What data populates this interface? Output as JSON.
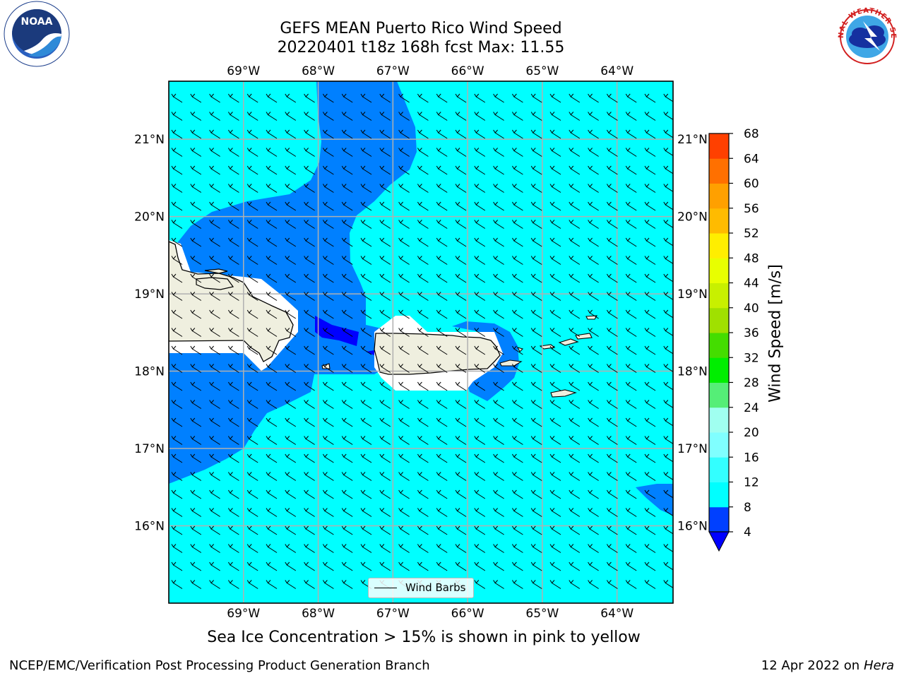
{
  "title": {
    "line1": "GEFS MEAN Puerto Rico Wind Speed",
    "line2": "20220401 t18z 168h fcst   Max: 11.55"
  },
  "logos": {
    "left": "NOAA",
    "right": "NATIONAL WEATHER SERVICE",
    "left_icon": "noaa-logo-icon",
    "right_icon": "nws-logo-icon"
  },
  "map": {
    "lon_ticks": [
      "69°W",
      "68°W",
      "67°W",
      "66°W",
      "65°W",
      "64°W"
    ],
    "lat_ticks": [
      "21°N",
      "20°N",
      "19°N",
      "18°N",
      "17°N",
      "16°N"
    ],
    "lon_range": [
      -70.0,
      -63.25
    ],
    "lat_range": [
      15.0,
      21.75
    ],
    "gridlines": true,
    "legend_label": "Wind Barbs",
    "legend_position": "bottom-center"
  },
  "colorbar": {
    "label": "Wind Speed [m/s]",
    "ticks": [
      "4",
      "8",
      "12",
      "16",
      "20",
      "24",
      "28",
      "32",
      "36",
      "40",
      "44",
      "48",
      "52",
      "56",
      "60",
      "64",
      "68"
    ],
    "colors": [
      "#0040ff",
      "#00ffff",
      "#33ffff",
      "#80ffff",
      "#a0fff0",
      "#55ee77",
      "#00ee00",
      "#44dd00",
      "#a0e000",
      "#c8f000",
      "#e8ff00",
      "#ffee00",
      "#ffbb00",
      "#ffa000",
      "#ff7000",
      "#ff4000",
      "#ff1000"
    ],
    "under_color": "#0000ff"
  },
  "chart_data": {
    "type": "heatmap",
    "title": "GEFS MEAN Puerto Rico Wind Speed",
    "subtitle": "20220401 t18z 168h fcst   Max: 11.55",
    "units": "m/s",
    "max": 11.55,
    "field_colors": {
      "background": "#00ffff",
      "4_8_band": "#0080ff",
      "below_4": "#0000ff",
      "land": "#efefdf"
    }
  },
  "caption": "Sea Ice Concentration > 15% is shown in pink to yellow",
  "footer": {
    "left": "NCEP/EMC/Verification Post Processing Product Generation Branch",
    "right_prefix": "12 Apr 2022 on ",
    "right_machine": "Hera"
  }
}
